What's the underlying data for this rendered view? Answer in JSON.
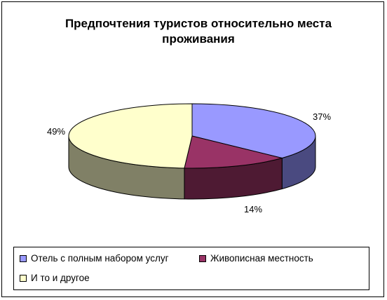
{
  "chart_data": {
    "type": "pie",
    "title": "Предпочтения туристов относительно места проживания",
    "title_lines": [
      "Предпочтения туристов относительно места",
      "проживания"
    ],
    "slices": [
      {
        "label": "Отель с полным набором услуг",
        "value": 37,
        "display": "37%",
        "color": "#9999ff",
        "side_color": "#4a4a80"
      },
      {
        "label": "Живописная местность",
        "value": 14,
        "display": "14%",
        "color": "#993366",
        "side_color": "#4e1a33"
      },
      {
        "label": "И то и другое",
        "value": 49,
        "display": "49%",
        "color": "#ffffcc",
        "side_color": "#808066"
      }
    ],
    "legend_position": "bottom",
    "style": "3d"
  }
}
